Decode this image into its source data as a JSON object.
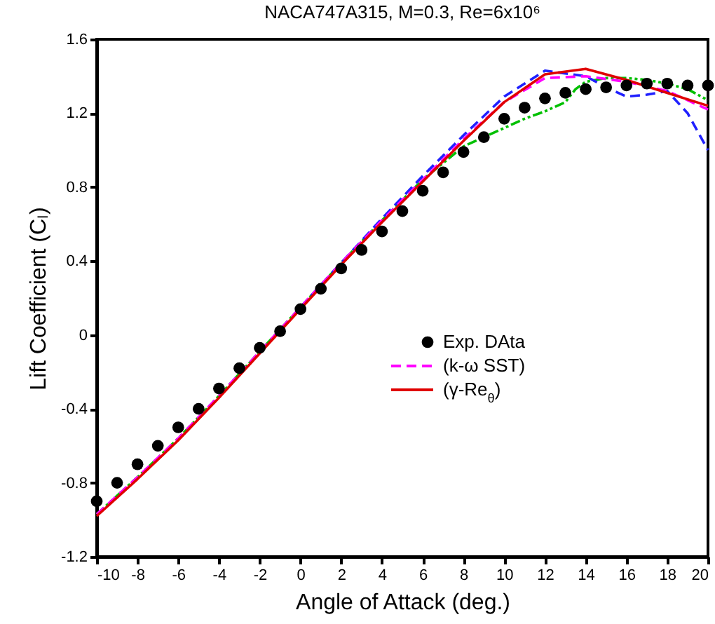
{
  "chart_data": {
    "type": "line",
    "title": "NACA747A315, M=0.3, Re=6x10⁶",
    "xlabel": "Angle of Attack (deg.)",
    "ylabel": "Lift Coefficient (Cₗ)",
    "xlim": [
      -10,
      20
    ],
    "xticks": [
      -10,
      -8,
      -6,
      -4,
      -2,
      0,
      2,
      4,
      6,
      8,
      10,
      12,
      14,
      16,
      18,
      20
    ],
    "ylim": [
      -1.2,
      1.6
    ],
    "yticks": [
      -1.2,
      -0.8,
      -0.4,
      0,
      0.4,
      0.8,
      1.2,
      1.6
    ],
    "grid": false,
    "legend": "bottom right",
    "series": [
      {
        "name": "Exp. DAta",
        "type": "scatter",
        "marker": "circle",
        "color": "#000000",
        "x": [
          -10,
          -9,
          -8,
          -7,
          -6,
          -5,
          -4,
          -3,
          -2,
          -1,
          0,
          1,
          2,
          3,
          4,
          5,
          6,
          7,
          8,
          9,
          10,
          11,
          12,
          13,
          14,
          15,
          16,
          17,
          18,
          19,
          20
        ],
        "values": [
          -0.9,
          -0.8,
          -0.7,
          -0.6,
          -0.5,
          -0.4,
          -0.29,
          -0.18,
          -0.07,
          0.02,
          0.14,
          0.25,
          0.36,
          0.46,
          0.56,
          0.67,
          0.78,
          0.88,
          0.99,
          1.07,
          1.17,
          1.23,
          1.28,
          1.31,
          1.33,
          1.34,
          1.35,
          1.36,
          1.36,
          1.35,
          1.35
        ]
      },
      {
        "type": "line",
        "line_style": "dotted",
        "color": "#00c000",
        "x": [
          -10,
          -8,
          -6,
          -4,
          -2,
          0,
          2,
          4,
          6,
          7,
          8,
          9,
          10,
          11,
          12,
          13,
          13.5,
          14,
          15,
          16,
          17,
          18,
          19,
          20
        ],
        "values": [
          -0.97,
          -0.77,
          -0.56,
          -0.33,
          -0.09,
          0.15,
          0.39,
          0.62,
          0.84,
          0.93,
          1.02,
          1.07,
          1.12,
          1.17,
          1.21,
          1.26,
          1.33,
          1.37,
          1.39,
          1.39,
          1.38,
          1.36,
          1.33,
          1.27
        ]
      },
      {
        "type": "line",
        "line_style": "dashed",
        "color": "#2020ff",
        "x": [
          0,
          2,
          4,
          6,
          8,
          10,
          12,
          14,
          15,
          16,
          17,
          18,
          19,
          20
        ],
        "values": [
          0.15,
          0.39,
          0.63,
          0.86,
          1.08,
          1.29,
          1.43,
          1.4,
          1.34,
          1.29,
          1.3,
          1.32,
          1.2,
          1.0
        ]
      },
      {
        "name": "(k-ω SST)",
        "type": "line",
        "line_style": "dashed",
        "color": "#ff00ff",
        "x": [
          -10,
          -8,
          -6,
          -4,
          -2,
          0,
          2,
          4,
          6,
          8,
          10,
          12,
          14,
          16,
          18,
          20
        ],
        "values": [
          -0.97,
          -0.77,
          -0.56,
          -0.33,
          -0.09,
          0.15,
          0.39,
          0.62,
          0.84,
          1.06,
          1.26,
          1.39,
          1.4,
          1.37,
          1.32,
          1.22
        ]
      },
      {
        "name": "(γ-Re$_{θ}$)",
        "type": "line",
        "line_style": "solid",
        "color": "#e00000",
        "x": [
          -10,
          -8,
          -6,
          -4,
          -2,
          0,
          2,
          4,
          6,
          8,
          10,
          12,
          14,
          16,
          18,
          20
        ],
        "values": [
          -0.98,
          -0.78,
          -0.57,
          -0.34,
          -0.1,
          0.14,
          0.38,
          0.61,
          0.83,
          1.05,
          1.26,
          1.41,
          1.44,
          1.38,
          1.31,
          1.24
        ]
      }
    ]
  }
}
